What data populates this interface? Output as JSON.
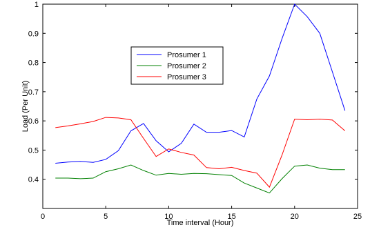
{
  "chart_data": {
    "type": "line",
    "xlabel": "Time interval (Hour)",
    "ylabel": "Load (Per Unit)",
    "xlim": [
      0,
      25
    ],
    "ylim": [
      0.3,
      1.0
    ],
    "xticks": [
      0,
      5,
      10,
      15,
      20,
      25
    ],
    "yticks": [
      0.4,
      0.5,
      0.6,
      0.7,
      0.8,
      0.9,
      1.0
    ],
    "xtick_labels": [
      "0",
      "5",
      "10",
      "15",
      "20",
      "25"
    ],
    "ytick_labels": [
      "0.4",
      "0.5",
      "0.6",
      "0.7",
      "0.8",
      "0.9",
      "1"
    ],
    "grid": false,
    "legend_position": "upper-center",
    "x": [
      1,
      2,
      3,
      4,
      5,
      6,
      7,
      8,
      9,
      10,
      11,
      12,
      13,
      14,
      15,
      16,
      17,
      18,
      19,
      20,
      21,
      22,
      23,
      24
    ],
    "series": [
      {
        "name": "Prosumer 1",
        "color": "#0000ff",
        "values": [
          0.455,
          0.459,
          0.461,
          0.458,
          0.468,
          0.498,
          0.566,
          0.591,
          0.532,
          0.494,
          0.523,
          0.589,
          0.561,
          0.561,
          0.567,
          0.545,
          0.675,
          0.754,
          0.882,
          1.0,
          0.957,
          0.9,
          0.768,
          0.635
        ]
      },
      {
        "name": "Prosumer 2",
        "color": "#008000",
        "values": [
          0.404,
          0.404,
          0.402,
          0.404,
          0.426,
          0.436,
          0.449,
          0.43,
          0.414,
          0.42,
          0.417,
          0.42,
          0.419,
          0.416,
          0.413,
          0.387,
          0.37,
          0.353,
          0.402,
          0.445,
          0.449,
          0.438,
          0.433,
          0.433
        ]
      },
      {
        "name": "Prosumer 3",
        "color": "#ff0000",
        "values": [
          0.577,
          0.583,
          0.59,
          0.598,
          0.612,
          0.61,
          0.604,
          0.54,
          0.478,
          0.504,
          0.492,
          0.483,
          0.44,
          0.436,
          0.441,
          0.43,
          0.421,
          0.373,
          0.483,
          0.606,
          0.604,
          0.606,
          0.603,
          0.566
        ]
      }
    ]
  }
}
